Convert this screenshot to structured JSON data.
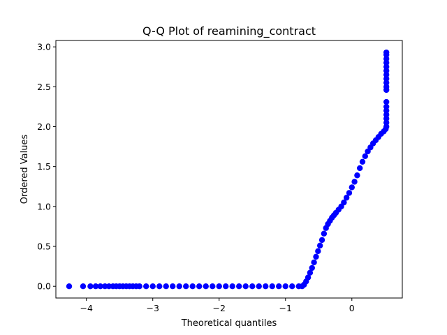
{
  "chart_data": {
    "type": "scatter",
    "title": "Q-Q Plot of reamining_contract",
    "xlabel": "Theoretical quantiles",
    "ylabel": "Ordered Values",
    "xlim": [
      -4.46,
      0.76
    ],
    "ylim": [
      -0.147,
      3.08
    ],
    "xticks": [
      -4,
      -3,
      -2,
      -1,
      0
    ],
    "xtick_labels": [
      "−4",
      "−3",
      "−2",
      "−1",
      "0"
    ],
    "yticks": [
      0.0,
      0.5,
      1.0,
      1.5,
      2.0,
      2.5,
      3.0
    ],
    "ytick_labels": [
      "0.0",
      "0.5",
      "1.0",
      "1.5",
      "2.0",
      "2.5",
      "3.0"
    ],
    "grid": false,
    "marker_color": "#0000ff",
    "series": [
      {
        "points": [
          [
            -4.26,
            0.0
          ],
          [
            -4.05,
            0.0
          ],
          [
            -3.94,
            0.0
          ],
          [
            -3.86,
            0.0
          ],
          [
            -3.79,
            0.0
          ],
          [
            -3.72,
            0.0
          ],
          [
            -3.66,
            0.0
          ],
          [
            -3.6,
            0.0
          ],
          [
            -3.55,
            0.0
          ],
          [
            -3.5,
            0.0
          ],
          [
            -3.45,
            0.0
          ],
          [
            -3.4,
            0.0
          ],
          [
            -3.35,
            0.0
          ],
          [
            -3.3,
            0.0
          ],
          [
            -3.25,
            0.0
          ],
          [
            -3.2,
            0.0
          ],
          [
            -3.1,
            0.0
          ],
          [
            -3.0,
            0.0
          ],
          [
            -2.9,
            0.0
          ],
          [
            -2.8,
            0.0
          ],
          [
            -2.7,
            0.0
          ],
          [
            -2.6,
            0.0
          ],
          [
            -2.5,
            0.0
          ],
          [
            -2.4,
            0.0
          ],
          [
            -2.3,
            0.0
          ],
          [
            -2.2,
            0.0
          ],
          [
            -2.1,
            0.0
          ],
          [
            -2.0,
            0.0
          ],
          [
            -1.9,
            0.0
          ],
          [
            -1.8,
            0.0
          ],
          [
            -1.7,
            0.0
          ],
          [
            -1.6,
            0.0
          ],
          [
            -1.5,
            0.0
          ],
          [
            -1.4,
            0.0
          ],
          [
            -1.3,
            0.0
          ],
          [
            -1.2,
            0.0
          ],
          [
            -1.1,
            0.0
          ],
          [
            -1.0,
            0.0
          ],
          [
            -0.9,
            0.0
          ],
          [
            -0.8,
            0.0
          ],
          [
            -0.75,
            0.0
          ],
          [
            -0.72,
            0.02
          ],
          [
            -0.69,
            0.06
          ],
          [
            -0.66,
            0.11
          ],
          [
            -0.63,
            0.17
          ],
          [
            -0.6,
            0.23
          ],
          [
            -0.57,
            0.3
          ],
          [
            -0.54,
            0.37
          ],
          [
            -0.51,
            0.44
          ],
          [
            -0.48,
            0.51
          ],
          [
            -0.45,
            0.58
          ],
          [
            -0.42,
            0.66
          ],
          [
            -0.39,
            0.73
          ],
          [
            -0.36,
            0.78
          ],
          [
            -0.33,
            0.82
          ],
          [
            -0.3,
            0.86
          ],
          [
            -0.27,
            0.89
          ],
          [
            -0.24,
            0.92
          ],
          [
            -0.2,
            0.96
          ],
          [
            -0.16,
            1.0
          ],
          [
            -0.12,
            1.05
          ],
          [
            -0.08,
            1.11
          ],
          [
            -0.04,
            1.17
          ],
          [
            0.0,
            1.24
          ],
          [
            0.04,
            1.31
          ],
          [
            0.08,
            1.39
          ],
          [
            0.12,
            1.48
          ],
          [
            0.16,
            1.56
          ],
          [
            0.2,
            1.63
          ],
          [
            0.24,
            1.69
          ],
          [
            0.28,
            1.74
          ],
          [
            0.32,
            1.79
          ],
          [
            0.36,
            1.83
          ],
          [
            0.4,
            1.87
          ],
          [
            0.44,
            1.91
          ],
          [
            0.48,
            1.94
          ],
          [
            0.51,
            1.97
          ],
          [
            0.52,
            2.0
          ],
          [
            0.52,
            2.05
          ],
          [
            0.52,
            2.1
          ],
          [
            0.52,
            2.15
          ],
          [
            0.52,
            2.2
          ],
          [
            0.52,
            2.25
          ],
          [
            0.52,
            2.31
          ],
          [
            0.52,
            2.46
          ],
          [
            0.52,
            2.5
          ],
          [
            0.52,
            2.55
          ],
          [
            0.52,
            2.6
          ],
          [
            0.52,
            2.65
          ],
          [
            0.52,
            2.7
          ],
          [
            0.52,
            2.75
          ],
          [
            0.52,
            2.8
          ],
          [
            0.52,
            2.85
          ],
          [
            0.52,
            2.9
          ],
          [
            0.52,
            2.93
          ]
        ]
      }
    ]
  }
}
